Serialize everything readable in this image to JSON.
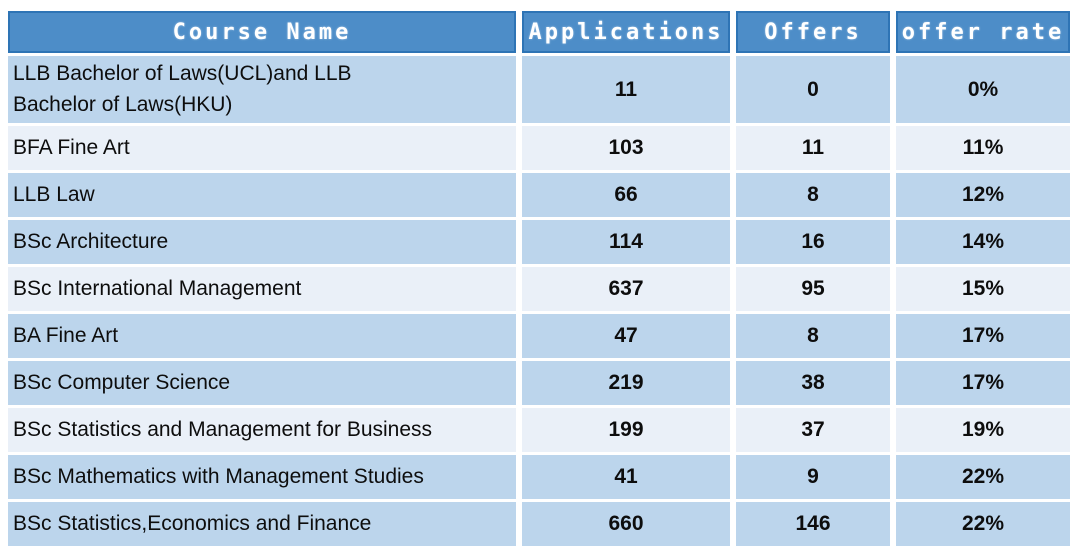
{
  "colors": {
    "header_bg": "#4D8DC8",
    "header_border": "#2E74B5",
    "header_text": "#FFFFFF",
    "row_medium": "#BCD5EC",
    "row_light": "#EAF0F8",
    "body_text": "#0D0D0D",
    "page_background": "#FFFFFF"
  },
  "table": {
    "columns": [
      {
        "label": "Course Name"
      },
      {
        "label": "Applications"
      },
      {
        "label": "Offers"
      },
      {
        "label": "offer rate"
      }
    ],
    "rows": [
      {
        "course": "LLB Bachelor of Laws(UCL)and LLB Bachelor of Laws(HKU)",
        "applications": "11",
        "offers": "0",
        "offer_rate": "0%",
        "shade": "medium"
      },
      {
        "course": "BFA Fine Art",
        "applications": "103",
        "offers": "11",
        "offer_rate": "11%",
        "shade": "light"
      },
      {
        "course": "LLB Law",
        "applications": "66",
        "offers": "8",
        "offer_rate": "12%",
        "shade": "medium"
      },
      {
        "course": "BSc Architecture",
        "applications": "114",
        "offers": "16",
        "offer_rate": "14%",
        "shade": "medium"
      },
      {
        "course": "BSc International Management",
        "applications": "637",
        "offers": "95",
        "offer_rate": "15%",
        "shade": "light"
      },
      {
        "course": "BA Fine Art",
        "applications": "47",
        "offers": "8",
        "offer_rate": "17%",
        "shade": "medium"
      },
      {
        "course": "BSc Computer Science",
        "applications": "219",
        "offers": "38",
        "offer_rate": "17%",
        "shade": "medium"
      },
      {
        "course": "BSc Statistics and Management for Business",
        "applications": "199",
        "offers": "37",
        "offer_rate": "19%",
        "shade": "light"
      },
      {
        "course": "BSc Mathematics with Management Studies",
        "applications": "41",
        "offers": "9",
        "offer_rate": "22%",
        "shade": "medium"
      },
      {
        "course": "BSc Statistics,Economics and Finance",
        "applications": "660",
        "offers": "146",
        "offer_rate": "22%",
        "shade": "medium"
      }
    ]
  },
  "chart_data": {
    "type": "table",
    "title": "",
    "columns": [
      "Course Name",
      "Applications",
      "Offers",
      "offer rate"
    ],
    "rows": [
      [
        "LLB Bachelor of Laws(UCL)and LLB Bachelor of Laws(HKU)",
        11,
        0,
        "0%"
      ],
      [
        "BFA Fine Art",
        103,
        11,
        "11%"
      ],
      [
        "LLB Law",
        66,
        8,
        "12%"
      ],
      [
        "BSc Architecture",
        114,
        16,
        "14%"
      ],
      [
        "BSc International Management",
        637,
        95,
        "15%"
      ],
      [
        "BA Fine Art",
        47,
        8,
        "17%"
      ],
      [
        "BSc Computer Science",
        219,
        38,
        "17%"
      ],
      [
        "BSc Statistics and Management for Business",
        199,
        37,
        "19%"
      ],
      [
        "BSc Mathematics with Management Studies",
        41,
        9,
        "22%"
      ],
      [
        "BSc Statistics,Economics and Finance",
        660,
        146,
        "22%"
      ]
    ]
  }
}
